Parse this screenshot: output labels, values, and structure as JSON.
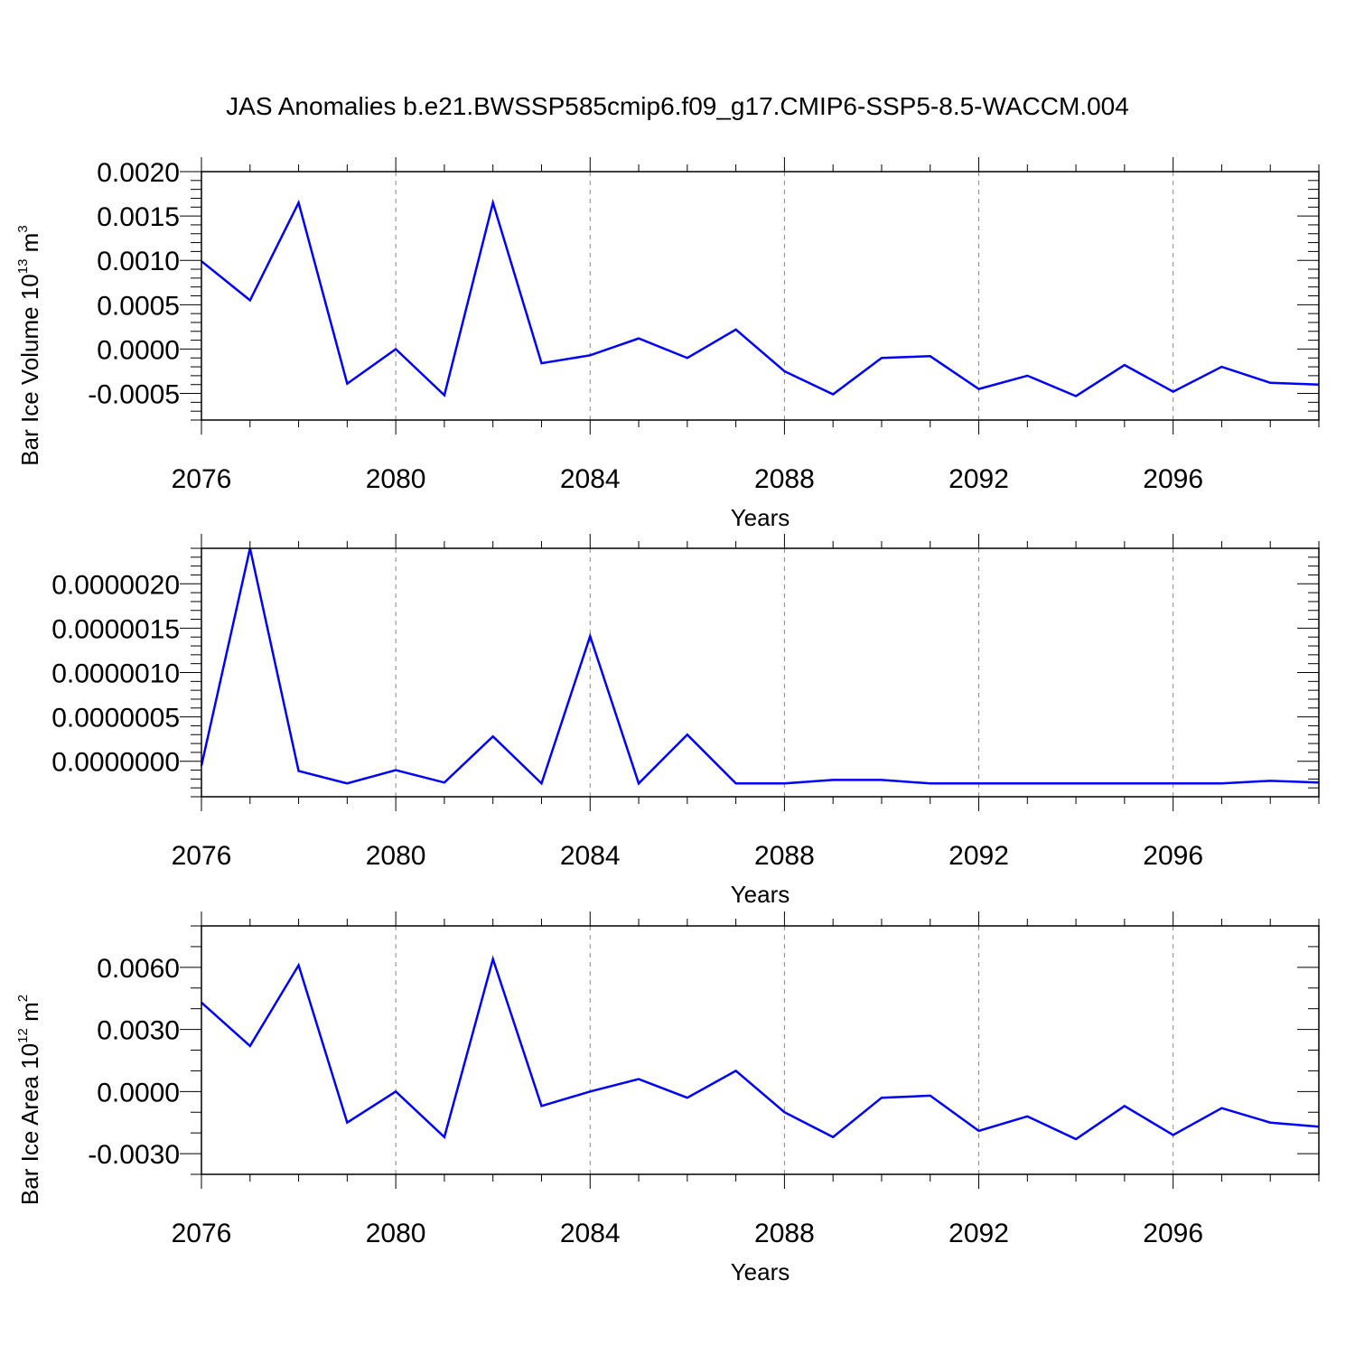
{
  "title": "JAS Anomalies b.e21.BWSSP585cmip6.f09_g17.CMIP6-SSP5-8.5-WACCM.004",
  "colors": {
    "line": "#0000ff",
    "axis": "#000000",
    "grid": "#888888"
  },
  "chart_data": [
    {
      "type": "line",
      "name": "ice-volume",
      "ylabel": {
        "text": "Bar Ice Volume 10",
        "sup": "13",
        "unit": " m",
        "unit_sup": "3"
      },
      "xlabel": "Years",
      "xlim": [
        2076,
        2099
      ],
      "ylim": [
        -0.0008,
        0.002
      ],
      "xticks": [
        2076,
        2080,
        2084,
        2088,
        2092,
        2096
      ],
      "xtick_labels": [
        "2076",
        "2080",
        "2084",
        "2088",
        "2092",
        "2096"
      ],
      "yticks": [
        0.002,
        0.0015,
        0.001,
        0.0005,
        0.0,
        -0.0005
      ],
      "ytick_labels": [
        "0.0020",
        "0.0015",
        "0.0010",
        "0.0005",
        "0.0000",
        "-0.0005"
      ],
      "yminor_step": 0.0001,
      "series": [
        {
          "name": "Bar Ice Volume",
          "x": [
            2076,
            2077,
            2078,
            2079,
            2080,
            2081,
            2082,
            2083,
            2084,
            2085,
            2086,
            2087,
            2088,
            2089,
            2090,
            2091,
            2092,
            2093,
            2094,
            2095,
            2096,
            2097,
            2098,
            2099
          ],
          "values": [
            0.00099,
            0.00055,
            0.00165,
            -0.00039,
            0.0,
            -0.00052,
            0.00165,
            -0.00016,
            -7e-05,
            0.00012,
            -0.0001,
            0.00022,
            -0.00025,
            -0.00051,
            -0.0001,
            -8e-05,
            -0.00045,
            -0.0003,
            -0.00053,
            -0.00018,
            -0.00048,
            -0.0002,
            -0.00038,
            -0.0004
          ]
        }
      ]
    },
    {
      "type": "line",
      "name": "middle",
      "ylabel": null,
      "xlabel": "Years",
      "xlim": [
        2076,
        2099
      ],
      "ylim": [
        -4e-07,
        2.4e-06
      ],
      "xticks": [
        2076,
        2080,
        2084,
        2088,
        2092,
        2096
      ],
      "xtick_labels": [
        "2076",
        "2080",
        "2084",
        "2088",
        "2092",
        "2096"
      ],
      "yticks": [
        2e-06,
        1.5e-06,
        1e-06,
        5e-07,
        0.0
      ],
      "ytick_labels": [
        "0.0000020",
        "0.0000015",
        "0.0000010",
        "0.0000005",
        "0.0000000"
      ],
      "yminor_step": 1e-07,
      "series": [
        {
          "name": "series",
          "x": [
            2076,
            2077,
            2078,
            2079,
            2080,
            2081,
            2082,
            2083,
            2084,
            2085,
            2086,
            2087,
            2088,
            2089,
            2090,
            2091,
            2092,
            2093,
            2094,
            2095,
            2096,
            2097,
            2098,
            2099
          ],
          "values": [
            -5e-08,
            2.4e-06,
            -1.1e-07,
            -2.5e-07,
            -1e-07,
            -2.4e-07,
            2.8e-07,
            -2.5e-07,
            1.41e-06,
            -2.5e-07,
            3e-07,
            -2.5e-07,
            -2.5e-07,
            -2.1e-07,
            -2.1e-07,
            -2.5e-07,
            -2.5e-07,
            -2.5e-07,
            -2.5e-07,
            -2.5e-07,
            -2.5e-07,
            -2.5e-07,
            -2.2e-07,
            -2.4e-07
          ]
        }
      ]
    },
    {
      "type": "line",
      "name": "ice-area",
      "ylabel": {
        "text": "Bar Ice Area 10",
        "sup": "12",
        "unit": " m",
        "unit_sup": "2"
      },
      "xlabel": "Years",
      "xlim": [
        2076,
        2099
      ],
      "ylim": [
        -0.004,
        0.008
      ],
      "xticks": [
        2076,
        2080,
        2084,
        2088,
        2092,
        2096
      ],
      "xtick_labels": [
        "2076",
        "2080",
        "2084",
        "2088",
        "2092",
        "2096"
      ],
      "yticks": [
        0.006,
        0.003,
        0.0,
        -0.003
      ],
      "ytick_labels": [
        "0.0060",
        "0.0030",
        "0.0000",
        "-0.0030"
      ],
      "yminor_step": 0.001,
      "series": [
        {
          "name": "Bar Ice Area",
          "x": [
            2076,
            2077,
            2078,
            2079,
            2080,
            2081,
            2082,
            2083,
            2084,
            2085,
            2086,
            2087,
            2088,
            2089,
            2090,
            2091,
            2092,
            2093,
            2094,
            2095,
            2096,
            2097,
            2098,
            2099
          ],
          "values": [
            0.0043,
            0.0022,
            0.0061,
            -0.0015,
            0.0,
            -0.0022,
            0.0064,
            -0.0007,
            0.0,
            0.0006,
            -0.0003,
            0.001,
            -0.001,
            -0.0022,
            -0.0003,
            -0.0002,
            -0.0019,
            -0.0012,
            -0.0023,
            -0.0007,
            -0.0021,
            -0.0008,
            -0.0015,
            -0.0017
          ]
        }
      ]
    }
  ]
}
